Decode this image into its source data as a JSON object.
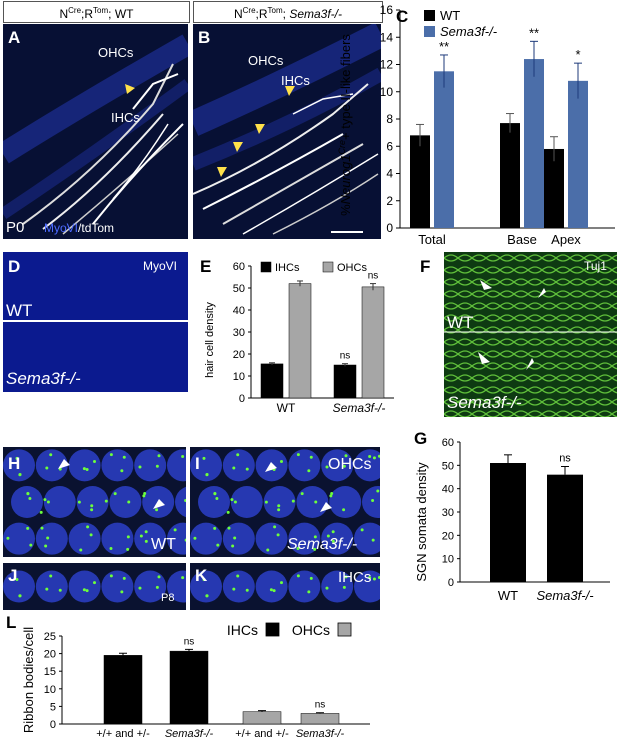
{
  "panelA": {
    "label": "A",
    "header": "N^Cre;R^Tom; WT",
    "header_base": "N",
    "header_sup1": "Cre",
    "header_mid": ";R",
    "header_sup2": "Tom",
    "header_end": "; WT",
    "ohc": "OHCs",
    "ihc": "IHCs",
    "age": "P0",
    "stain1": "MyoVI",
    "stain_sep": "/",
    "stain2": "tdTom"
  },
  "panelB": {
    "label": "B",
    "header_base": "N",
    "header_sup1": "Cre",
    "header_mid": ";R",
    "header_sup2": "Tom",
    "header_end": "; ",
    "header_geno": "Sema3f-/-",
    "ohc": "OHCs",
    "ihc": "IHCs"
  },
  "panelC": {
    "label": "C",
    "colors": {
      "wt": "#000000",
      "ko": "#4b6ea9"
    }
  },
  "panelD": {
    "label": "D",
    "stain": "MyoVI",
    "wt": "WT",
    "ko": "Sema3f-/-"
  },
  "panelE": {
    "label": "E",
    "colors": {
      "ihc": "#000000",
      "ohc": "#a6a6a6"
    }
  },
  "panelF": {
    "label": "F",
    "stain": "Tuj1",
    "wt": "WT",
    "ko": "Sema3f-/-"
  },
  "panelG": {
    "label": "G"
  },
  "panelH": {
    "label": "H",
    "wt": "WT"
  },
  "panelI": {
    "label": "I",
    "ohc": "OHCs",
    "ko": "Sema3f-/-"
  },
  "panelJ": {
    "label": "J",
    "age": "P8"
  },
  "panelK": {
    "label": "K",
    "ihc": "IHCs"
  },
  "panelL": {
    "label": "L"
  },
  "chart_data": [
    {
      "panel": "C",
      "type": "bar",
      "ylabel": "%Neurog1Cre+ type II-like fibers",
      "ylabel_parts": [
        "%",
        "Neurog1",
        "Cre",
        "+ type II-like fibers"
      ],
      "categories": [
        "Total",
        "Base",
        "Apex"
      ],
      "ylim": [
        0,
        16
      ],
      "yticks": [
        0,
        2,
        4,
        6,
        8,
        10,
        12,
        14,
        16
      ],
      "series": [
        {
          "name": "WT",
          "values": [
            6.8,
            7.7,
            5.8
          ],
          "errors": [
            0.8,
            0.7,
            0.9
          ]
        },
        {
          "name": "Sema3f-/-",
          "values": [
            11.5,
            12.4,
            10.8
          ],
          "errors": [
            1.2,
            1.3,
            1.3
          ]
        }
      ],
      "annotations": [
        "**",
        "**",
        "*"
      ],
      "legend": "top-left"
    },
    {
      "panel": "E",
      "type": "bar",
      "ylabel": "hair cell density",
      "categories": [
        "WT",
        "Sema3f-/-"
      ],
      "ylim": [
        0,
        60
      ],
      "yticks": [
        0,
        10,
        20,
        30,
        40,
        50,
        60
      ],
      "series": [
        {
          "name": "IHCs",
          "values": [
            15.5,
            15
          ],
          "errors": [
            0.5,
            0.6
          ]
        },
        {
          "name": "OHCs",
          "values": [
            52,
            50.5
          ],
          "errors": [
            1.2,
            1.5
          ]
        }
      ],
      "annotations": [
        "",
        "",
        "ns",
        "ns"
      ],
      "legend": "top"
    },
    {
      "panel": "G",
      "type": "bar",
      "ylabel": "SGN somata density",
      "categories": [
        "WT",
        "Sema3f-/-"
      ],
      "ylim": [
        0,
        60
      ],
      "yticks": [
        0,
        10,
        20,
        30,
        40,
        50,
        60
      ],
      "values": [
        51,
        46
      ],
      "errors": [
        3.5,
        3.5
      ],
      "annotations": [
        "",
        "ns"
      ]
    },
    {
      "panel": "L",
      "type": "bar",
      "ylabel": "Ribbon bodies/cell",
      "categories": [
        "+/+ and +/-",
        "Sema3f-/-",
        "+/+ and +/-",
        "Sema3f-/-"
      ],
      "ylim": [
        0,
        25
      ],
      "yticks": [
        0,
        5,
        10,
        15,
        20,
        25
      ],
      "values": [
        19.5,
        20.7,
        3.5,
        3.0
      ],
      "errors": [
        0.6,
        0.5,
        0.3,
        0.2
      ],
      "groups": [
        "IHCs",
        "IHCs",
        "OHCs",
        "OHCs"
      ],
      "annotations": [
        "",
        "ns",
        "",
        "ns"
      ],
      "legend": [
        "IHCs",
        "OHCs"
      ],
      "legend_placement": "top-right"
    }
  ]
}
